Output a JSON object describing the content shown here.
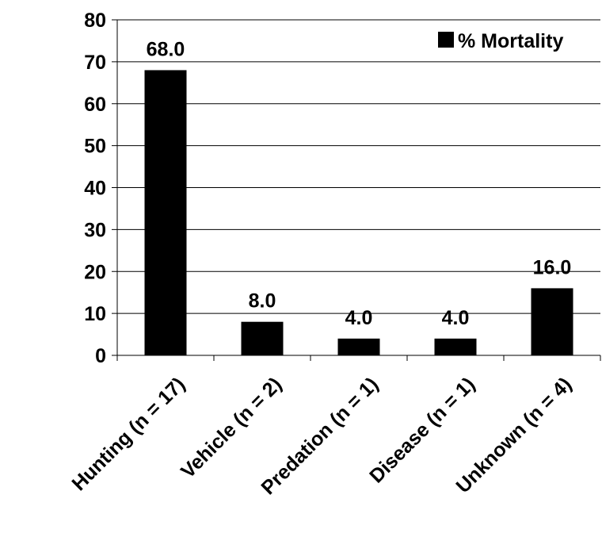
{
  "chart_data": {
    "type": "bar",
    "categories": [
      "Hunting (n = 17)",
      "Vehicle (n = 2)",
      "Predation (n = 1)",
      "Disease (n = 1)",
      "Unknown (n = 4)"
    ],
    "series": [
      {
        "name": "% Mortality",
        "values": [
          68.0,
          8.0,
          4.0,
          4.0,
          16.0
        ],
        "color": "#000000"
      }
    ],
    "data_labels": [
      "68.0",
      "8.0",
      "4.0",
      "4.0",
      "16.0"
    ],
    "ylim": [
      0,
      80
    ],
    "yticks": [
      0,
      10,
      20,
      30,
      40,
      50,
      60,
      70,
      80
    ],
    "grid": true,
    "legend_position": "top-right",
    "bar_color": "#000000",
    "grid_color": "#000000"
  }
}
